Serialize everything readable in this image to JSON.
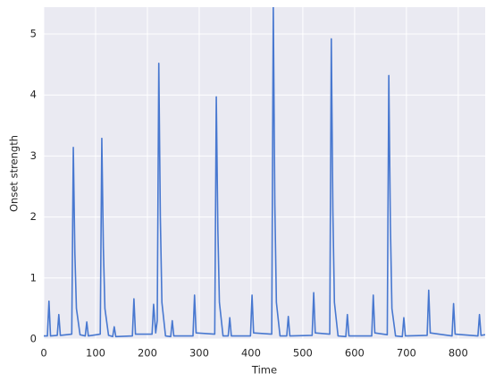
{
  "chart_data": {
    "type": "line",
    "xlabel": "Time",
    "ylabel": "Onset strength",
    "xlim": [
      0,
      852
    ],
    "ylim": [
      0,
      5.44
    ],
    "xticks": [
      0,
      100,
      200,
      300,
      400,
      500,
      600,
      700,
      800
    ],
    "yticks": [
      0,
      1,
      2,
      3,
      4,
      5
    ],
    "grid": true,
    "x": [
      0,
      7,
      10,
      13,
      26,
      29,
      32,
      54,
      57,
      60,
      63,
      70,
      80,
      83,
      86,
      109,
      112,
      115,
      118,
      125,
      133,
      136,
      139,
      171,
      174,
      177,
      209,
      212,
      216,
      219,
      222,
      225,
      228,
      235,
      245,
      248,
      251,
      288,
      291,
      294,
      330,
      333,
      336,
      339,
      346,
      356,
      359,
      362,
      399,
      402,
      405,
      440,
      443,
      446,
      449,
      456,
      469,
      472,
      475,
      518,
      521,
      524,
      552,
      555,
      558,
      561,
      568,
      583,
      586,
      589,
      633,
      636,
      639,
      663,
      666,
      669,
      672,
      679,
      692,
      695,
      698,
      740,
      743,
      746,
      788,
      791,
      794,
      838,
      841,
      844,
      852
    ],
    "series": [
      {
        "color": "#4878d0",
        "values": [
          0.05,
          0.05,
          0.62,
          0.05,
          0.06,
          0.4,
          0.06,
          0.08,
          3.14,
          1.4,
          0.5,
          0.07,
          0.05,
          0.28,
          0.05,
          0.08,
          3.29,
          1.5,
          0.5,
          0.06,
          0.04,
          0.2,
          0.04,
          0.05,
          0.66,
          0.08,
          0.08,
          0.57,
          0.1,
          0.3,
          4.52,
          2.0,
          0.6,
          0.05,
          0.04,
          0.3,
          0.05,
          0.05,
          0.72,
          0.1,
          0.08,
          3.97,
          1.8,
          0.6,
          0.05,
          0.05,
          0.35,
          0.05,
          0.05,
          0.72,
          0.1,
          0.08,
          5.44,
          2.2,
          0.6,
          0.05,
          0.05,
          0.37,
          0.05,
          0.06,
          0.76,
          0.1,
          0.08,
          4.92,
          2.1,
          0.6,
          0.05,
          0.04,
          0.4,
          0.05,
          0.05,
          0.72,
          0.1,
          0.07,
          4.32,
          1.9,
          0.5,
          0.05,
          0.04,
          0.35,
          0.05,
          0.06,
          0.8,
          0.1,
          0.05,
          0.58,
          0.08,
          0.05,
          0.4,
          0.06,
          0.07
        ]
      }
    ]
  }
}
